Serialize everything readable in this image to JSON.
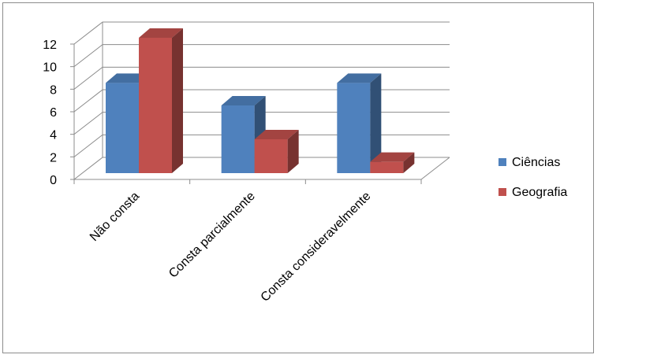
{
  "chart_data": {
    "type": "bar",
    "categories": [
      "Não consta",
      "Consta parcialmente",
      "Consta consideravelmente"
    ],
    "series": [
      {
        "name": "Ciências",
        "values": [
          8,
          6,
          8
        ],
        "color": "#4F81BD"
      },
      {
        "name": "Geografia",
        "values": [
          12,
          3,
          1
        ],
        "color": "#C0504D"
      }
    ],
    "ylim": [
      0,
      12
    ],
    "yticks": [
      "0",
      "2",
      "4",
      "6",
      "8",
      "10",
      "12"
    ],
    "grid": true,
    "legend_position": "right",
    "style": "3d-clustered"
  }
}
